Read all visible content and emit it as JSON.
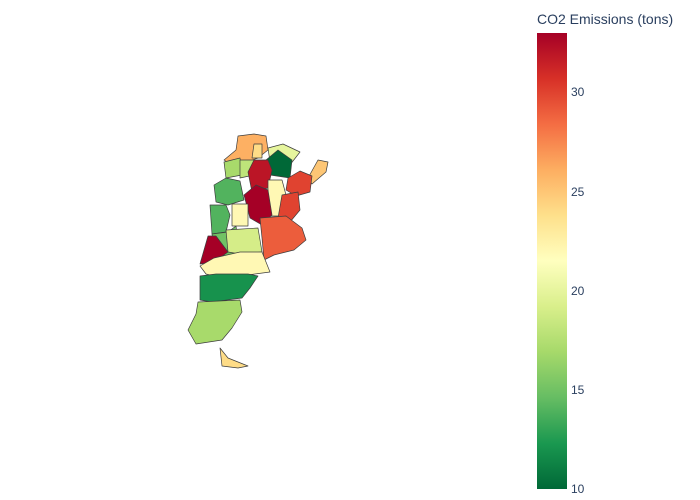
{
  "chart_data": {
    "type": "choropleth",
    "colorbar": {
      "title": "CO2 Emissions (tons)",
      "range": [
        10,
        33
      ],
      "ticks": [
        10,
        15,
        20,
        25,
        30
      ],
      "tick_labels": [
        "10",
        "15",
        "20",
        "25",
        "30"
      ],
      "colorscale": [
        "#006837",
        "#1a9850",
        "#66bd63",
        "#a6d96a",
        "#d9ef8b",
        "#ffffbf",
        "#fee08b",
        "#fdae61",
        "#f46d43",
        "#d73027",
        "#a50026"
      ]
    },
    "regions": [
      {
        "value": 26
      },
      {
        "value": 24
      },
      {
        "value": 17
      },
      {
        "value": 18
      },
      {
        "value": 20
      },
      {
        "value": 10
      },
      {
        "value": 32
      },
      {
        "value": 25
      },
      {
        "value": 30
      },
      {
        "value": 14
      },
      {
        "value": 22
      },
      {
        "value": 14
      },
      {
        "value": 33
      },
      {
        "value": 30
      },
      {
        "value": 15
      },
      {
        "value": 22
      },
      {
        "value": 19
      },
      {
        "value": 29
      },
      {
        "value": 33
      },
      {
        "value": 22
      },
      {
        "value": 12
      },
      {
        "value": 17
      },
      {
        "value": 24
      }
    ]
  }
}
